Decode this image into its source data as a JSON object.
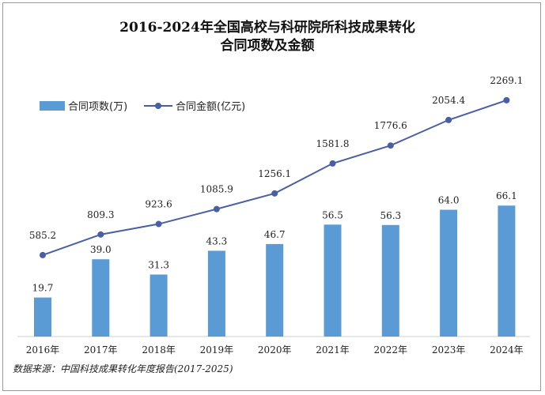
{
  "chart_data": {
    "type": "bar",
    "title_lines": [
      "2016-2024年全国高校与科研院所科技成果转化",
      "合同项数及金额"
    ],
    "categories": [
      "2016年",
      "2017年",
      "2018年",
      "2019年",
      "2020年",
      "2021年",
      "2022年",
      "2023年",
      "2024年"
    ],
    "series": [
      {
        "name": "合同项数(万)",
        "kind": "bar",
        "color": "#5b9bd5",
        "values": [
          19.7,
          39.0,
          31.3,
          43.3,
          46.7,
          56.5,
          56.3,
          64.0,
          66.1
        ],
        "labels": [
          "19.7",
          "39.0",
          "31.3",
          "43.3",
          "46.7",
          "56.5",
          "56.3",
          "64.0",
          "66.1"
        ]
      },
      {
        "name": "合同金额(亿元)",
        "kind": "line",
        "color": "#4a5fa3",
        "values": [
          585.2,
          809.3,
          923.6,
          1085.9,
          1256.1,
          1581.8,
          1776.6,
          2054.4,
          2269.1
        ],
        "labels": [
          "585.2",
          "809.3",
          "923.6",
          "1085.9",
          "1256.1",
          "1581.8",
          "1776.6",
          "2054.4",
          "2269.1"
        ]
      }
    ],
    "bar_axis_range": [
      0,
      130
    ],
    "line_axis_range": [
      -300,
      2500
    ],
    "legend_position": "top-left",
    "grid": false,
    "source": "数据来源：中国科技成果转化年度报告(2017-2025)"
  }
}
